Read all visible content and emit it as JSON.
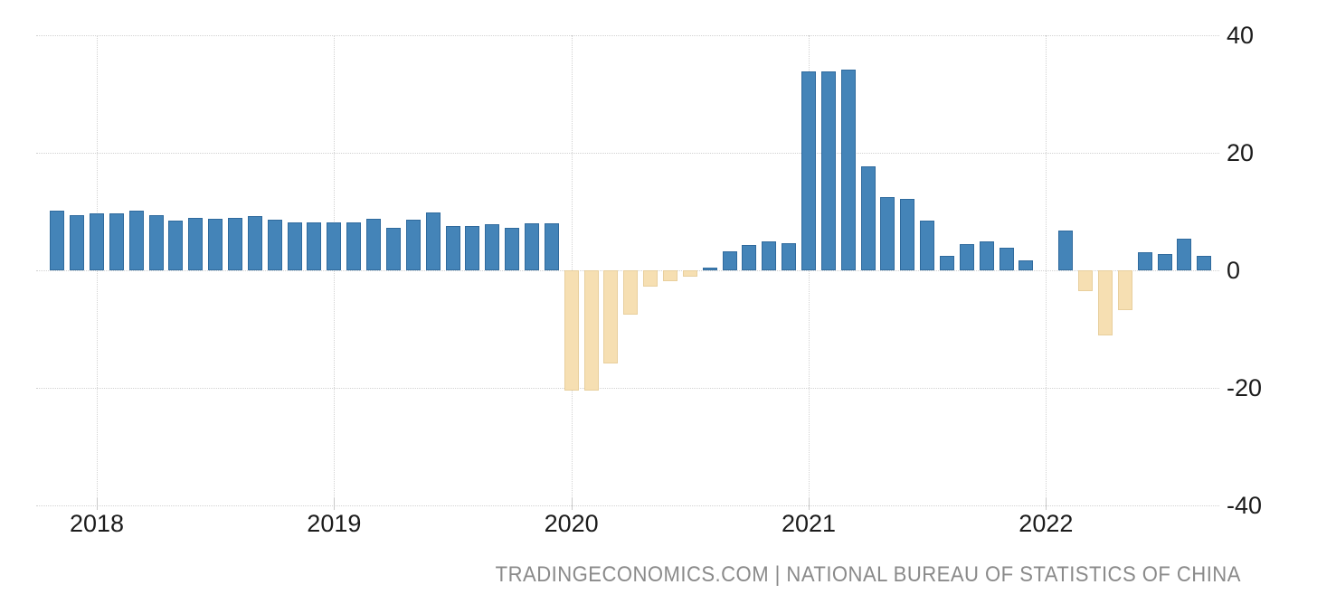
{
  "chart_data": {
    "type": "bar",
    "title": "",
    "xlabel": "",
    "ylabel": "",
    "ylim": [
      -40,
      40
    ],
    "yticks": [
      "40",
      "20",
      "0",
      "-20",
      "-40"
    ],
    "ytick_values": [
      40,
      20,
      0,
      -20,
      -40
    ],
    "xticks": [
      "2018",
      "2019",
      "2020",
      "2021",
      "2022"
    ],
    "grid": "dotted",
    "legend": "none",
    "axis_side": "right",
    "positive_color": "#4484b8",
    "negative_color": "#f6dfb2",
    "series": [
      {
        "month": "2017-11",
        "value": 10.2
      },
      {
        "month": "2017-12",
        "value": 9.4
      },
      {
        "month": "2018-01",
        "value": 9.7
      },
      {
        "month": "2018-02",
        "value": 9.7
      },
      {
        "month": "2018-03",
        "value": 10.1
      },
      {
        "month": "2018-04",
        "value": 9.4
      },
      {
        "month": "2018-05",
        "value": 8.5
      },
      {
        "month": "2018-06",
        "value": 9.0
      },
      {
        "month": "2018-07",
        "value": 8.8
      },
      {
        "month": "2018-08",
        "value": 9.0
      },
      {
        "month": "2018-09",
        "value": 9.2
      },
      {
        "month": "2018-10",
        "value": 8.6
      },
      {
        "month": "2018-11",
        "value": 8.1
      },
      {
        "month": "2018-12",
        "value": 8.2
      },
      {
        "month": "2019-01",
        "value": 8.2
      },
      {
        "month": "2019-02",
        "value": 8.2
      },
      {
        "month": "2019-03",
        "value": 8.7
      },
      {
        "month": "2019-04",
        "value": 7.2
      },
      {
        "month": "2019-05",
        "value": 8.6
      },
      {
        "month": "2019-06",
        "value": 9.8
      },
      {
        "month": "2019-07",
        "value": 7.6
      },
      {
        "month": "2019-08",
        "value": 7.5
      },
      {
        "month": "2019-09",
        "value": 7.8
      },
      {
        "month": "2019-10",
        "value": 7.2
      },
      {
        "month": "2019-11",
        "value": 8.0
      },
      {
        "month": "2019-12",
        "value": 8.0
      },
      {
        "month": "2020-01",
        "value": -20.5
      },
      {
        "month": "2020-02",
        "value": -20.5
      },
      {
        "month": "2020-03",
        "value": -15.8
      },
      {
        "month": "2020-04",
        "value": -7.5
      },
      {
        "month": "2020-05",
        "value": -2.8
      },
      {
        "month": "2020-06",
        "value": -1.8
      },
      {
        "month": "2020-07",
        "value": -1.1
      },
      {
        "month": "2020-08",
        "value": 0.5
      },
      {
        "month": "2020-09",
        "value": 3.3
      },
      {
        "month": "2020-10",
        "value": 4.3
      },
      {
        "month": "2020-11",
        "value": 5.0
      },
      {
        "month": "2020-12",
        "value": 4.6
      },
      {
        "month": "2021-01",
        "value": 33.8
      },
      {
        "month": "2021-02",
        "value": 33.8
      },
      {
        "month": "2021-03",
        "value": 34.2
      },
      {
        "month": "2021-04",
        "value": 17.7
      },
      {
        "month": "2021-05",
        "value": 12.4
      },
      {
        "month": "2021-06",
        "value": 12.1
      },
      {
        "month": "2021-07",
        "value": 8.5
      },
      {
        "month": "2021-08",
        "value": 2.5
      },
      {
        "month": "2021-09",
        "value": 4.4
      },
      {
        "month": "2021-10",
        "value": 4.9
      },
      {
        "month": "2021-11",
        "value": 3.9
      },
      {
        "month": "2021-12",
        "value": 1.7
      },
      {
        "month": "2022-01",
        "value": null
      },
      {
        "month": "2022-02",
        "value": 6.7
      },
      {
        "month": "2022-03",
        "value": -3.5
      },
      {
        "month": "2022-04",
        "value": -11.1
      },
      {
        "month": "2022-05",
        "value": -6.7
      },
      {
        "month": "2022-06",
        "value": 3.1
      },
      {
        "month": "2022-07",
        "value": 2.7
      },
      {
        "month": "2022-08",
        "value": 5.4
      },
      {
        "month": "2022-09",
        "value": 2.5
      }
    ]
  },
  "footer": {
    "text": "TRADINGECONOMICS.COM | NATIONAL BUREAU OF STATISTICS OF CHINA"
  }
}
